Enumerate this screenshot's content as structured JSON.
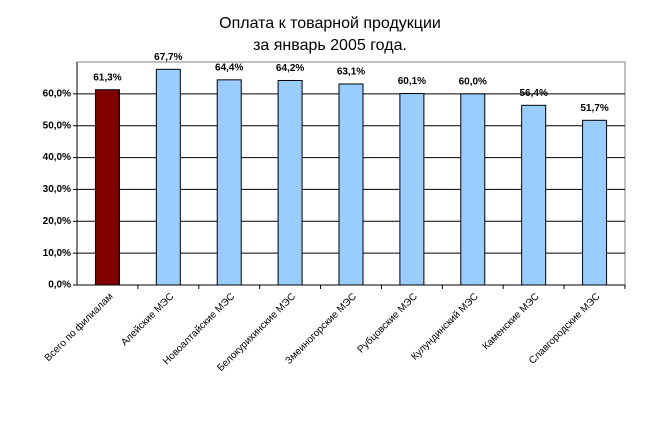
{
  "chart_data": {
    "type": "bar",
    "title": [
      "Оплата к товарной продукции",
      "за январь 2005 года."
    ],
    "categories": [
      "Всего по филиалам",
      "Алейские МЭС",
      "Новоалтайские МЭС",
      "Белокурихинские МЭС",
      "Змеиногорские МЭС",
      "Рубцовские МЭС",
      "Кулундинский МЭС",
      "Каменские МЭС",
      "Славгородские МЭС"
    ],
    "values": [
      61.3,
      67.7,
      64.4,
      64.2,
      63.1,
      60.1,
      60.0,
      56.4,
      51.7
    ],
    "value_labels": [
      "61,3%",
      "67,7%",
      "64,4%",
      "64,2%",
      "63,1%",
      "60,1%",
      "60,0%",
      "56,4%",
      "51,7%"
    ],
    "colors": [
      "#800000",
      "#99ccff",
      "#99ccff",
      "#99ccff",
      "#99ccff",
      "#99ccff",
      "#99ccff",
      "#99ccff",
      "#99ccff"
    ],
    "ylim": [
      0,
      70
    ],
    "yticks": [
      {
        "value": 0,
        "label": "0,0%"
      },
      {
        "value": 10,
        "label": "10,0%"
      },
      {
        "value": 20,
        "label": "20,0%"
      },
      {
        "value": 30,
        "label": "30,0%"
      },
      {
        "value": 40,
        "label": "40,0%"
      },
      {
        "value": 50,
        "label": "50,0%"
      },
      {
        "value": 60,
        "label": "60,0%"
      }
    ],
    "grid": true
  }
}
